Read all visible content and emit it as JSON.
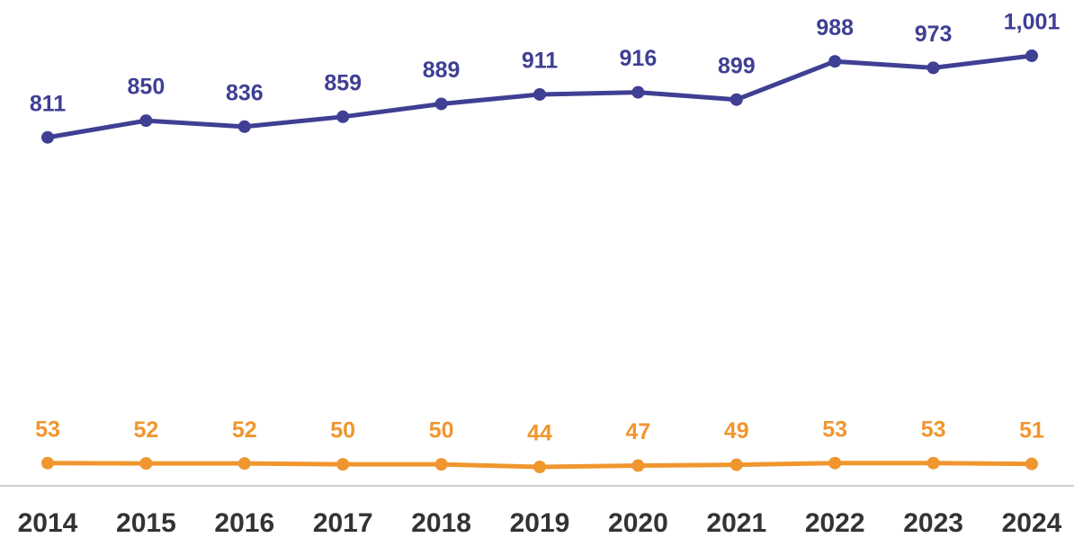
{
  "chart_data": {
    "type": "line",
    "categories": [
      "2014",
      "2015",
      "2016",
      "2017",
      "2018",
      "2019",
      "2020",
      "2021",
      "2022",
      "2023",
      "2024"
    ],
    "series": [
      {
        "color": "#3f3f94",
        "values": [
          811,
          850,
          836,
          859,
          889,
          911,
          916,
          899,
          988,
          973,
          1001
        ],
        "value_labels": [
          "811",
          "850",
          "836",
          "859",
          "889",
          "911",
          "916",
          "899",
          "988",
          "973",
          "1,001"
        ]
      },
      {
        "color": "#f0962e",
        "values": [
          53,
          52,
          52,
          50,
          50,
          44,
          47,
          49,
          53,
          53,
          51
        ]
      }
    ]
  }
}
